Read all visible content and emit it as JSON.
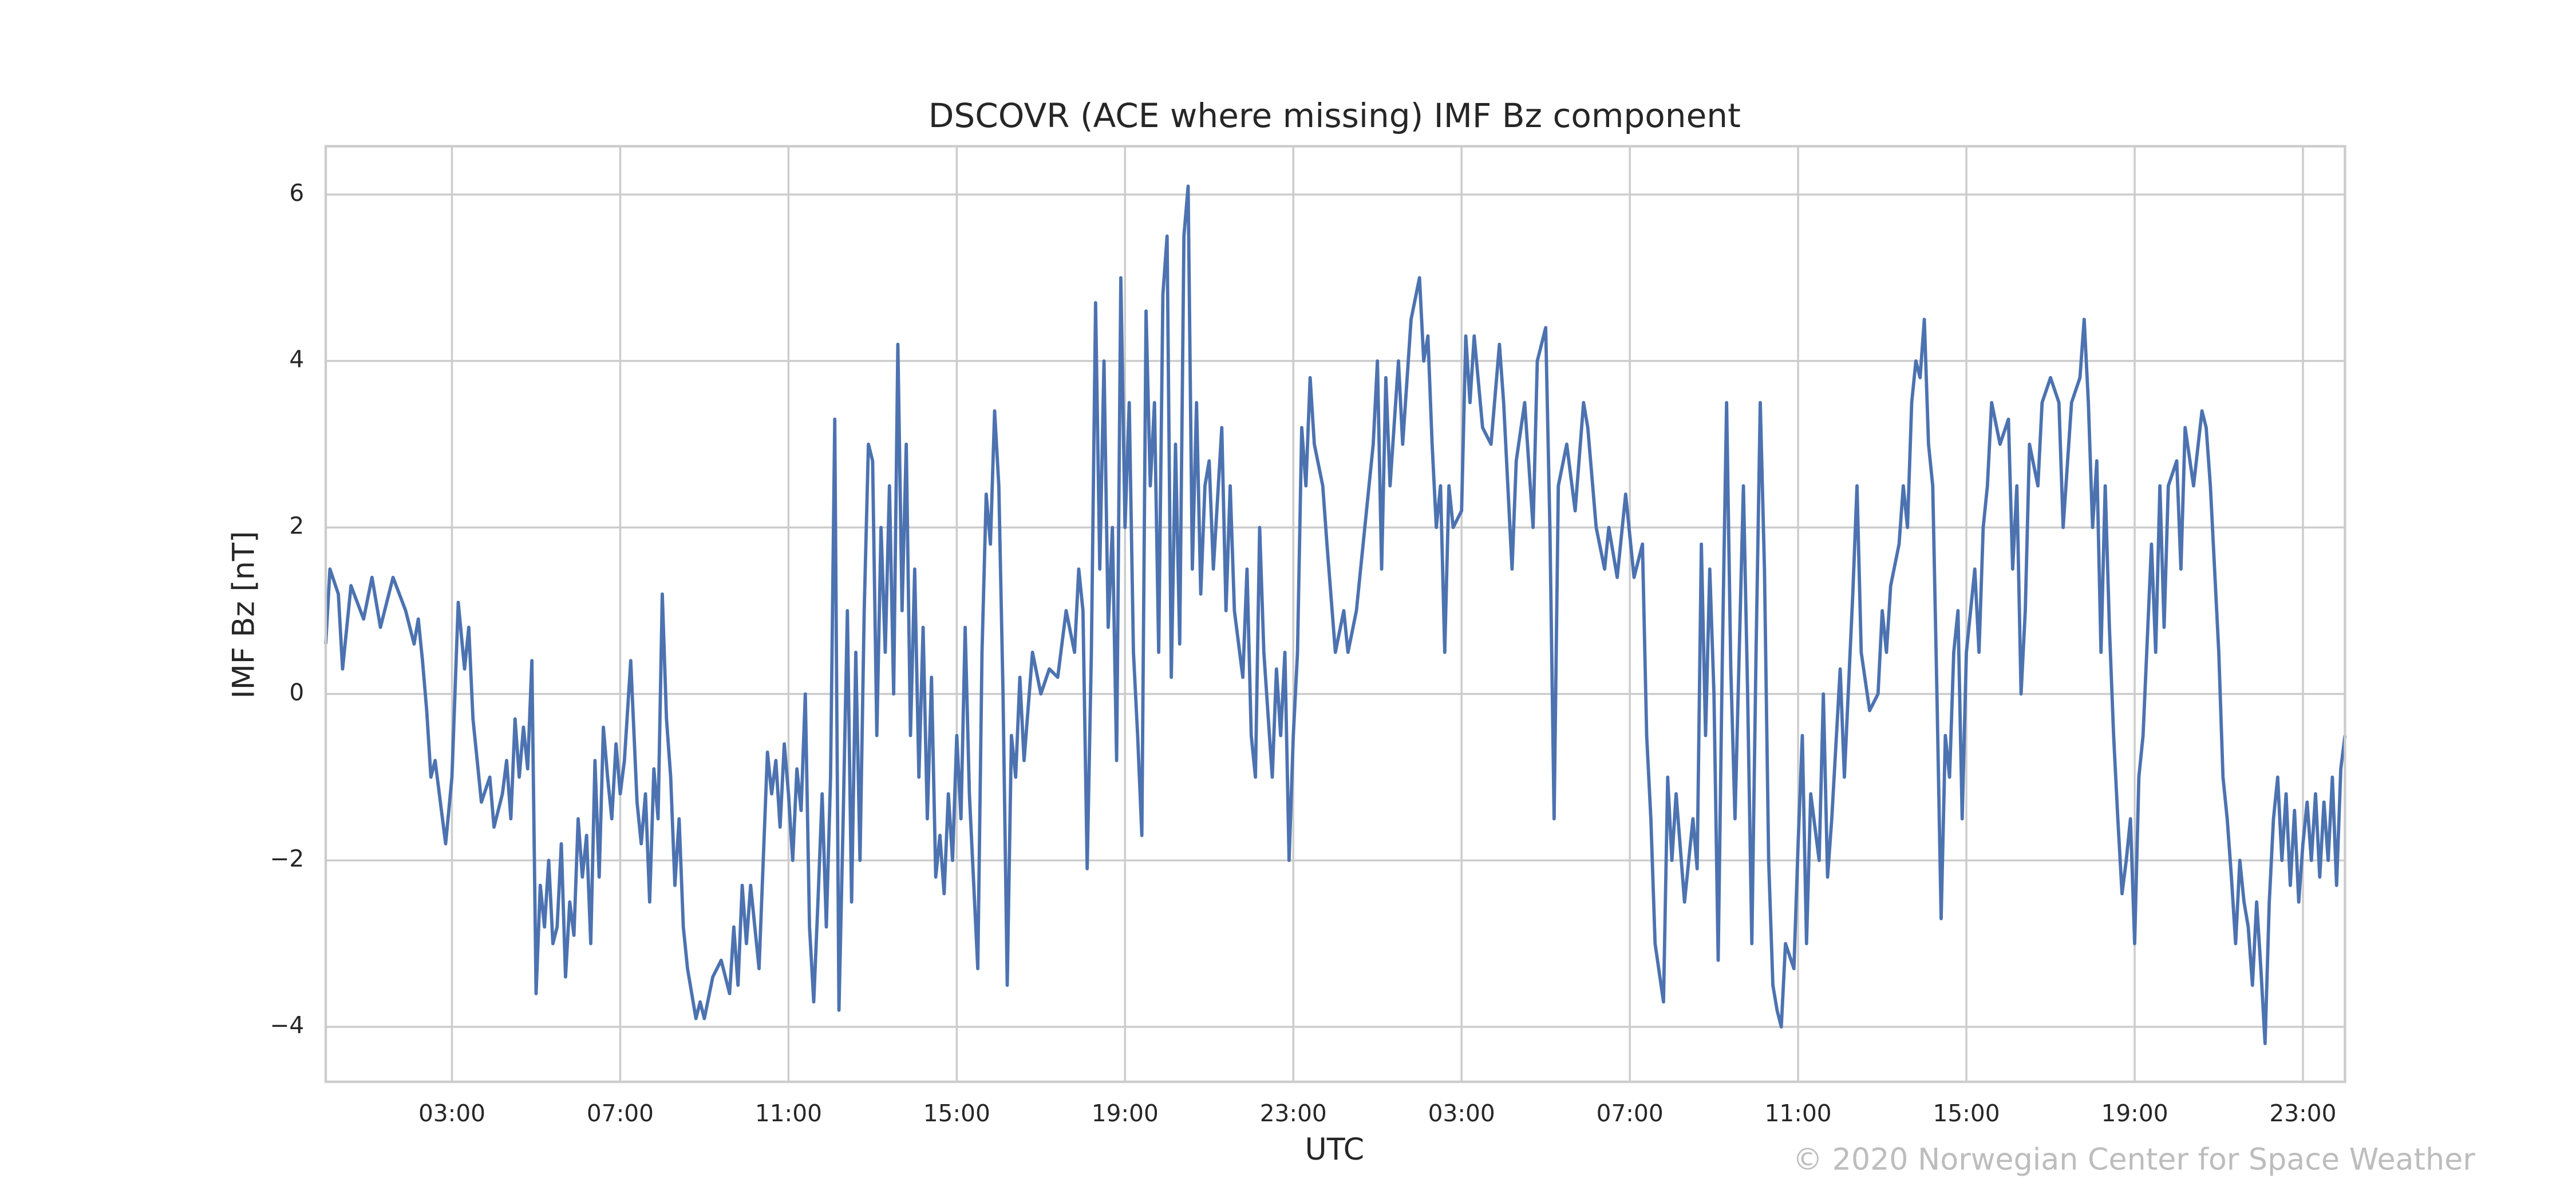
{
  "chart_data": {
    "type": "line",
    "title": "DSCOVR (ACE where missing) IMF Bz component",
    "xlabel": "UTC",
    "ylabel": "IMF Bz [nT]",
    "credit": "© 2020 Norwegian Center for Space Weather",
    "color": "#4c72b0",
    "grid": true,
    "xlim": [
      0,
      48
    ],
    "ylim": [
      -4.66,
      6.58
    ],
    "xticks": [
      {
        "value": 3,
        "label": "03:00"
      },
      {
        "value": 7,
        "label": "07:00"
      },
      {
        "value": 11,
        "label": "11:00"
      },
      {
        "value": 15,
        "label": "15:00"
      },
      {
        "value": 19,
        "label": "19:00"
      },
      {
        "value": 23,
        "label": "23:00"
      },
      {
        "value": 27,
        "label": "03:00"
      },
      {
        "value": 31,
        "label": "07:00"
      },
      {
        "value": 35,
        "label": "11:00"
      },
      {
        "value": 39,
        "label": "15:00"
      },
      {
        "value": 43,
        "label": "19:00"
      },
      {
        "value": 47,
        "label": "23:00"
      }
    ],
    "yticks": [
      {
        "value": -4,
        "label": "−4"
      },
      {
        "value": -2,
        "label": "−2"
      },
      0,
      2,
      4,
      6
    ],
    "x": [
      0,
      0.1,
      0.3,
      0.4,
      0.6,
      0.9,
      1.1,
      1.3,
      1.6,
      1.9,
      2.1,
      2.2,
      2.3,
      2.4,
      2.5,
      2.6,
      2.7,
      2.85,
      3.0,
      3.15,
      3.3,
      3.4,
      3.5,
      3.7,
      3.9,
      4.0,
      4.2,
      4.3,
      4.4,
      4.5,
      4.6,
      4.7,
      4.8,
      4.9,
      5.0,
      5.1,
      5.2,
      5.3,
      5.4,
      5.5,
      5.6,
      5.7,
      5.8,
      5.9,
      6.0,
      6.1,
      6.2,
      6.3,
      6.4,
      6.5,
      6.6,
      6.7,
      6.8,
      6.9,
      7.0,
      7.1,
      7.25,
      7.4,
      7.5,
      7.6,
      7.7,
      7.8,
      7.9,
      8.0,
      8.1,
      8.2,
      8.3,
      8.4,
      8.5,
      8.6,
      8.8,
      8.9,
      9.0,
      9.2,
      9.4,
      9.6,
      9.7,
      9.8,
      9.9,
      10.0,
      10.1,
      10.3,
      10.4,
      10.5,
      10.6,
      10.7,
      10.8,
      10.9,
      11.0,
      11.1,
      11.2,
      11.3,
      11.4,
      11.5,
      11.6,
      11.7,
      11.8,
      11.9,
      12.0,
      12.1,
      12.2,
      12.3,
      12.4,
      12.5,
      12.6,
      12.7,
      12.8,
      12.9,
      13.0,
      13.1,
      13.2,
      13.3,
      13.4,
      13.5,
      13.6,
      13.7,
      13.8,
      13.9,
      14.0,
      14.1,
      14.2,
      14.3,
      14.4,
      14.5,
      14.6,
      14.7,
      14.8,
      14.9,
      15.0,
      15.1,
      15.2,
      15.3,
      15.5,
      15.6,
      15.7,
      15.8,
      15.9,
      16.0,
      16.1,
      16.2,
      16.3,
      16.4,
      16.5,
      16.6,
      16.8,
      17.0,
      17.2,
      17.4,
      17.6,
      17.8,
      17.9,
      18.0,
      18.1,
      18.2,
      18.3,
      18.4,
      18.5,
      18.6,
      18.7,
      18.8,
      18.9,
      19.0,
      19.1,
      19.2,
      19.3,
      19.4,
      19.5,
      19.6,
      19.7,
      19.8,
      19.9,
      20.0,
      20.1,
      20.2,
      20.3,
      20.4,
      20.5,
      20.6,
      20.7,
      20.8,
      20.9,
      21.0,
      21.1,
      21.3,
      21.4,
      21.5,
      21.6,
      21.8,
      21.9,
      22.0,
      22.1,
      22.2,
      22.3,
      22.5,
      22.6,
      22.7,
      22.8,
      22.9,
      23.0,
      23.1,
      23.2,
      23.3,
      23.4,
      23.5,
      23.7,
      23.8,
      24.0,
      24.2,
      24.3,
      24.5,
      24.7,
      24.9,
      25.0,
      25.1,
      25.2,
      25.3,
      25.5,
      25.6,
      25.8,
      26.0,
      26.1,
      26.2,
      26.3,
      26.4,
      26.5,
      26.6,
      26.7,
      26.8,
      27.0,
      27.1,
      27.2,
      27.3,
      27.5,
      27.7,
      27.9,
      28.0,
      28.2,
      28.3,
      28.5,
      28.7,
      28.8,
      29.0,
      29.1,
      29.2,
      29.3,
      29.5,
      29.7,
      29.9,
      30.0,
      30.2,
      30.4,
      30.5,
      30.7,
      30.9,
      31.1,
      31.3,
      31.4,
      31.5,
      31.6,
      31.8,
      31.9,
      32.0,
      32.1,
      32.3,
      32.5,
      32.6,
      32.7,
      32.8,
      32.9,
      33.0,
      33.1,
      33.2,
      33.3,
      33.4,
      33.5,
      33.7,
      33.8,
      33.9,
      34.0,
      34.1,
      34.2,
      34.3,
      34.4,
      34.5,
      34.6,
      34.7,
      34.9,
      35.0,
      35.1,
      35.2,
      35.3,
      35.5,
      35.6,
      35.7,
      35.8,
      36.0,
      36.1,
      36.3,
      36.4,
      36.5,
      36.7,
      36.9,
      37.0,
      37.1,
      37.2,
      37.4,
      37.5,
      37.6,
      37.7,
      37.8,
      37.9,
      38.0,
      38.1,
      38.2,
      38.3,
      38.4,
      38.5,
      38.6,
      38.7,
      38.8,
      38.9,
      39.0,
      39.2,
      39.3,
      39.4,
      39.5,
      39.6,
      39.8,
      40.0,
      40.1,
      40.2,
      40.3,
      40.4,
      40.5,
      40.7,
      40.8,
      41.0,
      41.2,
      41.3,
      41.5,
      41.7,
      41.8,
      41.9,
      42.0,
      42.1,
      42.2,
      42.3,
      42.4,
      42.5,
      42.6,
      42.7,
      42.8,
      42.9,
      43.0,
      43.1,
      43.2,
      43.4,
      43.5,
      43.6,
      43.7,
      43.8,
      44.0,
      44.1,
      44.2,
      44.4,
      44.6,
      44.7,
      44.8,
      45.0,
      45.1,
      45.2,
      45.3,
      45.4,
      45.5,
      45.6,
      45.7,
      45.8,
      45.9,
      46.0,
      46.1,
      46.2,
      46.3,
      46.4,
      46.5,
      46.6,
      46.7,
      46.8,
      46.9,
      47.0,
      47.1,
      47.2,
      47.3,
      47.4,
      47.5,
      47.6,
      47.7,
      47.8,
      47.9,
      48.0
    ],
    "values": [
      0.6,
      1.5,
      1.2,
      0.3,
      1.3,
      0.9,
      1.4,
      0.8,
      1.4,
      1.0,
      0.6,
      0.9,
      0.4,
      -0.2,
      -1.0,
      -0.8,
      -1.2,
      -1.8,
      -1.0,
      1.1,
      0.3,
      0.8,
      -0.3,
      -1.3,
      -1.0,
      -1.6,
      -1.2,
      -0.8,
      -1.5,
      -0.3,
      -1.0,
      -0.4,
      -0.9,
      0.4,
      -3.6,
      -2.3,
      -2.8,
      -2.0,
      -3.0,
      -2.8,
      -1.8,
      -3.4,
      -2.5,
      -2.9,
      -1.5,
      -2.2,
      -1.7,
      -3.0,
      -0.8,
      -2.2,
      -0.4,
      -1.0,
      -1.5,
      -0.6,
      -1.2,
      -0.8,
      0.4,
      -1.3,
      -1.8,
      -1.2,
      -2.5,
      -0.9,
      -1.5,
      1.2,
      -0.3,
      -1.0,
      -2.3,
      -1.5,
      -2.8,
      -3.3,
      -3.9,
      -3.7,
      -3.9,
      -3.4,
      -3.2,
      -3.6,
      -2.8,
      -3.5,
      -2.3,
      -3.0,
      -2.3,
      -3.3,
      -2.0,
      -0.7,
      -1.2,
      -0.8,
      -1.6,
      -0.6,
      -1.2,
      -2.0,
      -0.9,
      -1.4,
      0.0,
      -2.8,
      -3.7,
      -2.5,
      -1.2,
      -2.8,
      -1.0,
      3.3,
      -3.8,
      -1.5,
      1.0,
      -2.5,
      0.5,
      -2.0,
      1.0,
      3.0,
      2.8,
      -0.5,
      2.0,
      0.5,
      2.5,
      0.0,
      4.2,
      1.0,
      3.0,
      -0.5,
      1.5,
      -1.0,
      0.8,
      -1.5,
      0.2,
      -2.2,
      -1.7,
      -2.4,
      -1.2,
      -2.0,
      -0.5,
      -1.5,
      0.8,
      -1.2,
      -3.3,
      0.5,
      2.4,
      1.8,
      3.4,
      2.5,
      0.0,
      -3.5,
      -0.5,
      -1.0,
      0.2,
      -0.8,
      0.5,
      0.0,
      0.3,
      0.2,
      1.0,
      0.5,
      1.5,
      1.0,
      -2.1,
      0.5,
      4.7,
      1.5,
      4.0,
      0.8,
      2.0,
      -0.8,
      5.0,
      2.0,
      3.5,
      0.5,
      -0.5,
      -1.7,
      4.6,
      2.5,
      3.5,
      0.5,
      4.8,
      5.5,
      0.2,
      3.0,
      0.6,
      5.5,
      6.1,
      1.5,
      3.5,
      1.2,
      2.5,
      2.8,
      1.5,
      3.2,
      1.0,
      2.5,
      1.0,
      0.2,
      1.5,
      -0.5,
      -1.0,
      2.0,
      0.5,
      -1.0,
      0.3,
      -0.5,
      0.5,
      -2.0,
      -0.5,
      0.5,
      3.2,
      2.5,
      3.8,
      3.0,
      2.5,
      1.8,
      0.5,
      1.0,
      0.5,
      1.0,
      2.0,
      3.0,
      4.0,
      1.5,
      3.8,
      2.5,
      4.0,
      3.0,
      4.5,
      5.0,
      4.0,
      4.3,
      3.0,
      2.0,
      2.5,
      0.5,
      2.5,
      2.0,
      2.2,
      4.3,
      3.5,
      4.3,
      3.2,
      3.0,
      4.2,
      3.5,
      1.5,
      2.8,
      3.5,
      2.0,
      4.0,
      4.4,
      2.0,
      -1.5,
      2.5,
      3.0,
      2.2,
      3.5,
      3.2,
      2.0,
      1.5,
      2.0,
      1.4,
      2.4,
      1.4,
      1.8,
      -0.5,
      -1.5,
      -3.0,
      -3.7,
      -1.0,
      -2.0,
      -1.2,
      -2.5,
      -1.5,
      -2.1,
      1.8,
      -0.5,
      1.5,
      0.0,
      -3.2,
      0.5,
      3.5,
      0.3,
      -1.5,
      2.5,
      0.0,
      -3.0,
      0.5,
      3.5,
      1.5,
      -2.0,
      -3.5,
      -3.8,
      -4.0,
      -3.0,
      -3.3,
      -1.8,
      -0.5,
      -3.0,
      -1.2,
      -2.0,
      0.0,
      -2.2,
      -1.5,
      0.3,
      -1.0,
      1.2,
      2.5,
      0.5,
      -0.2,
      0.0,
      1.0,
      0.5,
      1.3,
      1.8,
      2.5,
      2.0,
      3.5,
      4.0,
      3.8,
      4.5,
      3.0,
      2.5,
      0.0,
      -2.7,
      -0.5,
      -1.0,
      0.5,
      1.0,
      -1.5,
      0.5,
      1.5,
      0.5,
      2.0,
      2.5,
      3.5,
      3.0,
      3.3,
      1.5,
      2.5,
      0.0,
      1.0,
      3.0,
      2.5,
      3.5,
      3.8,
      3.5,
      2.0,
      3.5,
      3.8,
      4.5,
      3.5,
      2.0,
      2.8,
      0.5,
      2.5,
      0.8,
      -0.5,
      -1.5,
      -2.4,
      -2.0,
      -1.5,
      -3.0,
      -1.0,
      -0.5,
      1.8,
      0.5,
      2.5,
      0.8,
      2.5,
      2.8,
      1.5,
      3.2,
      2.5,
      3.4,
      3.2,
      2.5,
      0.5,
      -1.0,
      -1.5,
      -2.2,
      -3.0,
      -2.0,
      -2.5,
      -2.8,
      -3.5,
      -2.5,
      -3.3,
      -4.2,
      -2.5,
      -1.5,
      -1.0,
      -2.0,
      -1.2,
      -2.3,
      -1.4,
      -2.5,
      -1.8,
      -1.3,
      -2.0,
      -1.2,
      -2.2,
      -1.3,
      -2.0,
      -1.0,
      -2.3,
      -0.9,
      -0.5
    ]
  }
}
